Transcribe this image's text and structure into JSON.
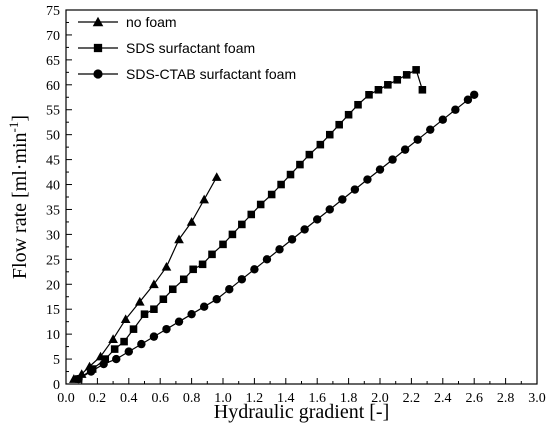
{
  "chart_data": {
    "type": "line",
    "xlabel": "Hydraulic gradient [-]",
    "ylabel_prefix": "Flow rate [ml·min",
    "ylabel_sup": "-1",
    "ylabel_suffix": "]",
    "xlim": [
      0.0,
      3.0
    ],
    "ylim": [
      0,
      75
    ],
    "xticks": [
      "0.0",
      "0.2",
      "0.4",
      "0.6",
      "0.8",
      "1.0",
      "1.2",
      "1.4",
      "1.6",
      "1.8",
      "2.0",
      "2.2",
      "2.4",
      "2.6",
      "2.8",
      "3.0"
    ],
    "yticks": [
      "0",
      "5",
      "10",
      "15",
      "20",
      "25",
      "30",
      "35",
      "40",
      "45",
      "50",
      "55",
      "60",
      "65",
      "70",
      "75"
    ],
    "legend_position": "top-left",
    "grid": false,
    "series": [
      {
        "name": "no foam",
        "marker": "triangle",
        "points": [
          [
            0.05,
            1
          ],
          [
            0.1,
            2
          ],
          [
            0.15,
            3.5
          ],
          [
            0.22,
            5.5
          ],
          [
            0.3,
            9
          ],
          [
            0.38,
            13
          ],
          [
            0.47,
            16.5
          ],
          [
            0.56,
            20
          ],
          [
            0.64,
            23.5
          ],
          [
            0.72,
            29
          ],
          [
            0.8,
            32.5
          ],
          [
            0.88,
            37
          ],
          [
            0.96,
            41.5
          ]
        ]
      },
      {
        "name": "SDS surfactant foam",
        "marker": "square",
        "points": [
          [
            0.08,
            1
          ],
          [
            0.17,
            3
          ],
          [
            0.25,
            5
          ],
          [
            0.31,
            7
          ],
          [
            0.37,
            8.5
          ],
          [
            0.43,
            11
          ],
          [
            0.5,
            14
          ],
          [
            0.56,
            15
          ],
          [
            0.62,
            17
          ],
          [
            0.68,
            19
          ],
          [
            0.75,
            21
          ],
          [
            0.81,
            23
          ],
          [
            0.87,
            24
          ],
          [
            0.93,
            26
          ],
          [
            1.0,
            28
          ],
          [
            1.06,
            30
          ],
          [
            1.12,
            32
          ],
          [
            1.18,
            34
          ],
          [
            1.24,
            36
          ],
          [
            1.31,
            38
          ],
          [
            1.37,
            40
          ],
          [
            1.43,
            42
          ],
          [
            1.49,
            44
          ],
          [
            1.55,
            46
          ],
          [
            1.62,
            48
          ],
          [
            1.68,
            50
          ],
          [
            1.74,
            52
          ],
          [
            1.8,
            54
          ],
          [
            1.86,
            56
          ],
          [
            1.93,
            58
          ],
          [
            1.99,
            59
          ],
          [
            2.05,
            60
          ],
          [
            2.11,
            61
          ],
          [
            2.17,
            62
          ],
          [
            2.23,
            63
          ],
          [
            2.27,
            59
          ]
        ]
      },
      {
        "name": "SDS-CTAB surfactant foam",
        "marker": "circle",
        "points": [
          [
            0.08,
            1
          ],
          [
            0.16,
            2.5
          ],
          [
            0.24,
            4
          ],
          [
            0.32,
            5
          ],
          [
            0.4,
            6.5
          ],
          [
            0.48,
            8
          ],
          [
            0.56,
            9.5
          ],
          [
            0.64,
            11
          ],
          [
            0.72,
            12.5
          ],
          [
            0.8,
            14
          ],
          [
            0.88,
            15.5
          ],
          [
            0.96,
            17
          ],
          [
            1.04,
            19
          ],
          [
            1.12,
            21
          ],
          [
            1.2,
            23
          ],
          [
            1.28,
            25
          ],
          [
            1.36,
            27
          ],
          [
            1.44,
            29
          ],
          [
            1.52,
            31
          ],
          [
            1.6,
            33
          ],
          [
            1.68,
            35
          ],
          [
            1.76,
            37
          ],
          [
            1.84,
            39
          ],
          [
            1.92,
            41
          ],
          [
            2.0,
            43
          ],
          [
            2.08,
            45
          ],
          [
            2.16,
            47
          ],
          [
            2.24,
            49
          ],
          [
            2.32,
            51
          ],
          [
            2.4,
            53
          ],
          [
            2.48,
            55
          ],
          [
            2.56,
            57
          ],
          [
            2.6,
            58
          ]
        ]
      }
    ]
  }
}
